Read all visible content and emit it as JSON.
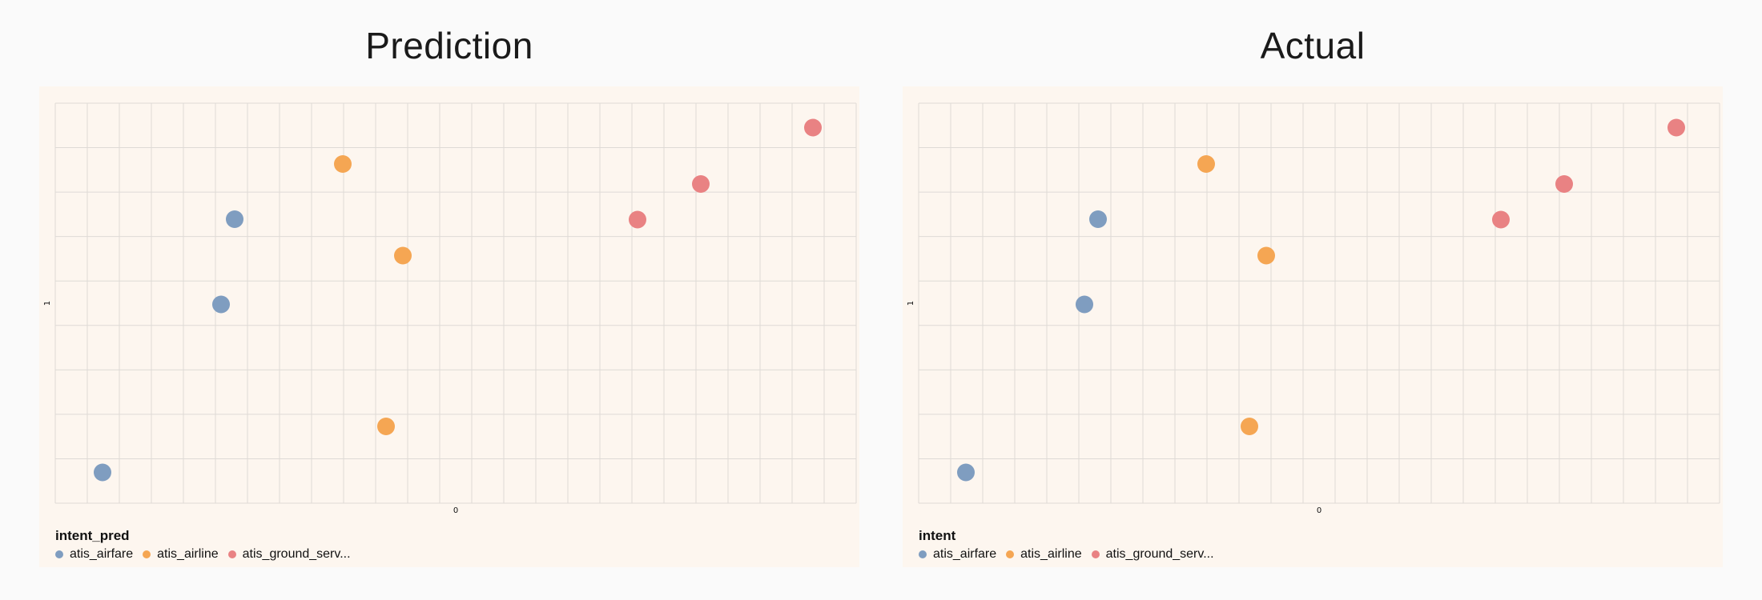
{
  "colors": {
    "atis_airfare": "#7f9dc0",
    "atis_airline": "#f5a653",
    "atis_ground_serv": "#e98283",
    "grid": "#dedad6"
  },
  "chart_data": [
    {
      "type": "scatter",
      "title": "Prediction",
      "x_ticks": [
        "0"
      ],
      "y_ticks": [
        "1"
      ],
      "xlim": [
        -0.5,
        0.5
      ],
      "ylim": [
        0.5,
        1.5
      ],
      "grid": true,
      "legend_placement": "bottom-left",
      "legend": {
        "title": "intent_pred",
        "entries": [
          "atis_airfare",
          "atis_airline",
          "atis_ground_serv..."
        ]
      },
      "points": [
        {
          "series": "atis_airfare",
          "x": -0.276,
          "y": 1.21
        },
        {
          "series": "atis_airfare",
          "x": -0.293,
          "y": 0.997
        },
        {
          "series": "atis_airfare",
          "x": -0.441,
          "y": 0.577
        },
        {
          "series": "atis_airline",
          "x": -0.141,
          "y": 1.348
        },
        {
          "series": "atis_airline",
          "x": -0.066,
          "y": 1.119
        },
        {
          "series": "atis_airline",
          "x": -0.087,
          "y": 0.692
        },
        {
          "series": "atis_ground_serv...",
          "x": 0.446,
          "y": 1.439
        },
        {
          "series": "atis_ground_serv...",
          "x": 0.306,
          "y": 1.298
        },
        {
          "series": "atis_ground_serv...",
          "x": 0.227,
          "y": 1.209
        }
      ]
    },
    {
      "type": "scatter",
      "title": "Actual",
      "x_ticks": [
        "0"
      ],
      "y_ticks": [
        "1"
      ],
      "xlim": [
        -0.5,
        0.5
      ],
      "ylim": [
        0.5,
        1.5
      ],
      "grid": true,
      "legend_placement": "bottom-left",
      "legend": {
        "title": "intent",
        "entries": [
          "atis_airfare",
          "atis_airline",
          "atis_ground_serv..."
        ]
      },
      "points": [
        {
          "series": "atis_airfare",
          "x": -0.276,
          "y": 1.21
        },
        {
          "series": "atis_airfare",
          "x": -0.293,
          "y": 0.997
        },
        {
          "series": "atis_airfare",
          "x": -0.441,
          "y": 0.577
        },
        {
          "series": "atis_airline",
          "x": -0.141,
          "y": 1.348
        },
        {
          "series": "atis_airline",
          "x": -0.066,
          "y": 1.119
        },
        {
          "series": "atis_airline",
          "x": -0.087,
          "y": 0.692
        },
        {
          "series": "atis_ground_serv...",
          "x": 0.446,
          "y": 1.439
        },
        {
          "series": "atis_ground_serv...",
          "x": 0.306,
          "y": 1.298
        },
        {
          "series": "atis_ground_serv...",
          "x": 0.227,
          "y": 1.209
        }
      ]
    }
  ]
}
